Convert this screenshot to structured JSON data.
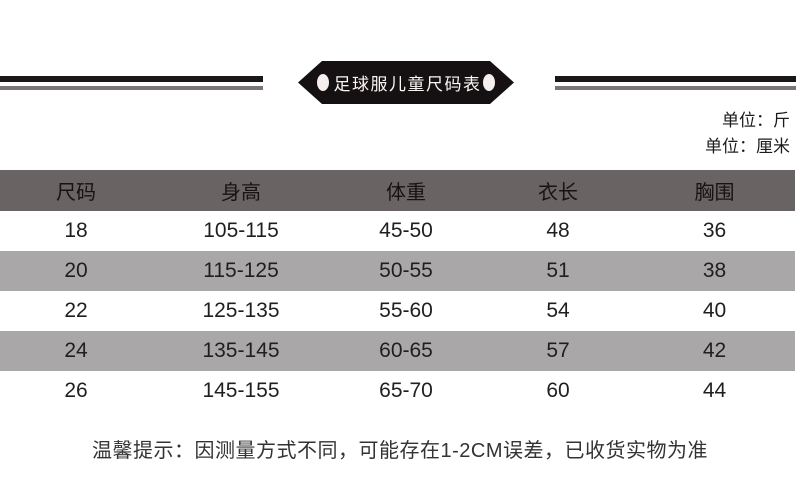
{
  "banner": {
    "title": "足球服儿童尺码表"
  },
  "units": {
    "line1": "单位：斤",
    "line2": "单位：厘米"
  },
  "size_table": {
    "headers": [
      "尺码",
      "身高",
      "体重",
      "衣长",
      "胸围"
    ],
    "rows": [
      [
        "18",
        "105-115",
        "45-50",
        "48",
        "36"
      ],
      [
        "20",
        "115-125",
        "50-55",
        "51",
        "38"
      ],
      [
        "22",
        "125-135",
        "55-60",
        "54",
        "40"
      ],
      [
        "24",
        "135-145",
        "60-65",
        "57",
        "42"
      ],
      [
        "26",
        "145-155",
        "65-70",
        "60",
        "44"
      ]
    ]
  },
  "note": "温馨提示：因测量方式不同，可能存在1-2CM误差，已收货实物为准",
  "colors": {
    "badge": "#151112",
    "dot": "#f6efed",
    "line_black": "#1b1718",
    "line_gray": "#7b7576",
    "header_bg": "#6a6364",
    "alt_row": "#a9a7a8"
  },
  "chart_data": {
    "type": "table",
    "title": "足球服儿童尺码表",
    "units": [
      "单位：斤",
      "单位：厘米"
    ],
    "columns": [
      "尺码",
      "身高",
      "体重",
      "衣长",
      "胸围"
    ],
    "rows": [
      [
        18,
        "105-115",
        "45-50",
        48,
        36
      ],
      [
        20,
        "115-125",
        "50-55",
        51,
        38
      ],
      [
        22,
        "125-135",
        "55-60",
        54,
        40
      ],
      [
        24,
        "135-145",
        "60-65",
        57,
        42
      ],
      [
        26,
        "145-155",
        "65-70",
        60,
        44
      ]
    ],
    "note": "温馨提示：因测量方式不同，可能存在1-2CM误差，已收货实物为准"
  }
}
